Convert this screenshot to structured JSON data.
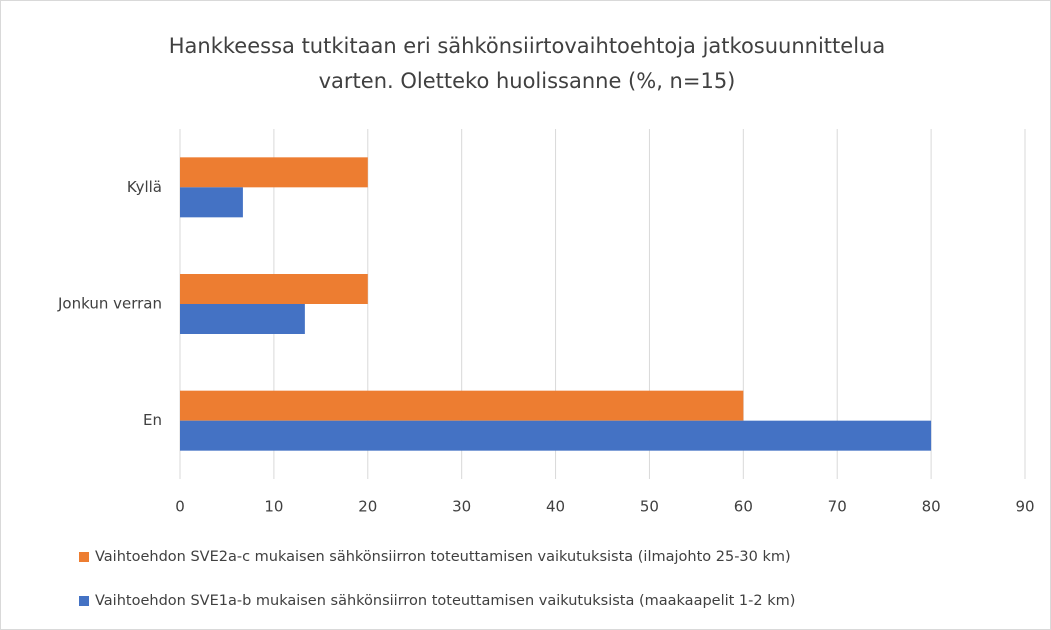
{
  "chart_data": {
    "type": "hbar",
    "title": [
      "Hankkeessa tutkitaan eri sähkönsiirtovaihtoehtoja jatkosuunnittelua",
      "varten. Oletteko huolissanne (%, n=15)"
    ],
    "categories": [
      "Kyllä",
      "Jonkun verran",
      "En"
    ],
    "series": [
      {
        "name": "Vaihtoehdon SVE2a-c mukaisen sähkönsiirron toteuttamisen vaikutuksista (ilmajohto 25-30 km)",
        "color": "#ed7d31",
        "values": [
          20,
          20,
          60
        ]
      },
      {
        "name": "Vaihtoehdon SVE1a-b mukaisen sähkönsiirron toteuttamisen vaikutuksista (maakaapelit 1-2 km)",
        "color": "#4472c4",
        "values": [
          6.7,
          13.3,
          80
        ]
      }
    ],
    "xlim": [
      0,
      90
    ],
    "xticks": [
      0,
      10,
      20,
      30,
      40,
      50,
      60,
      70,
      80,
      90
    ],
    "grid": true,
    "legend": "bottom"
  }
}
